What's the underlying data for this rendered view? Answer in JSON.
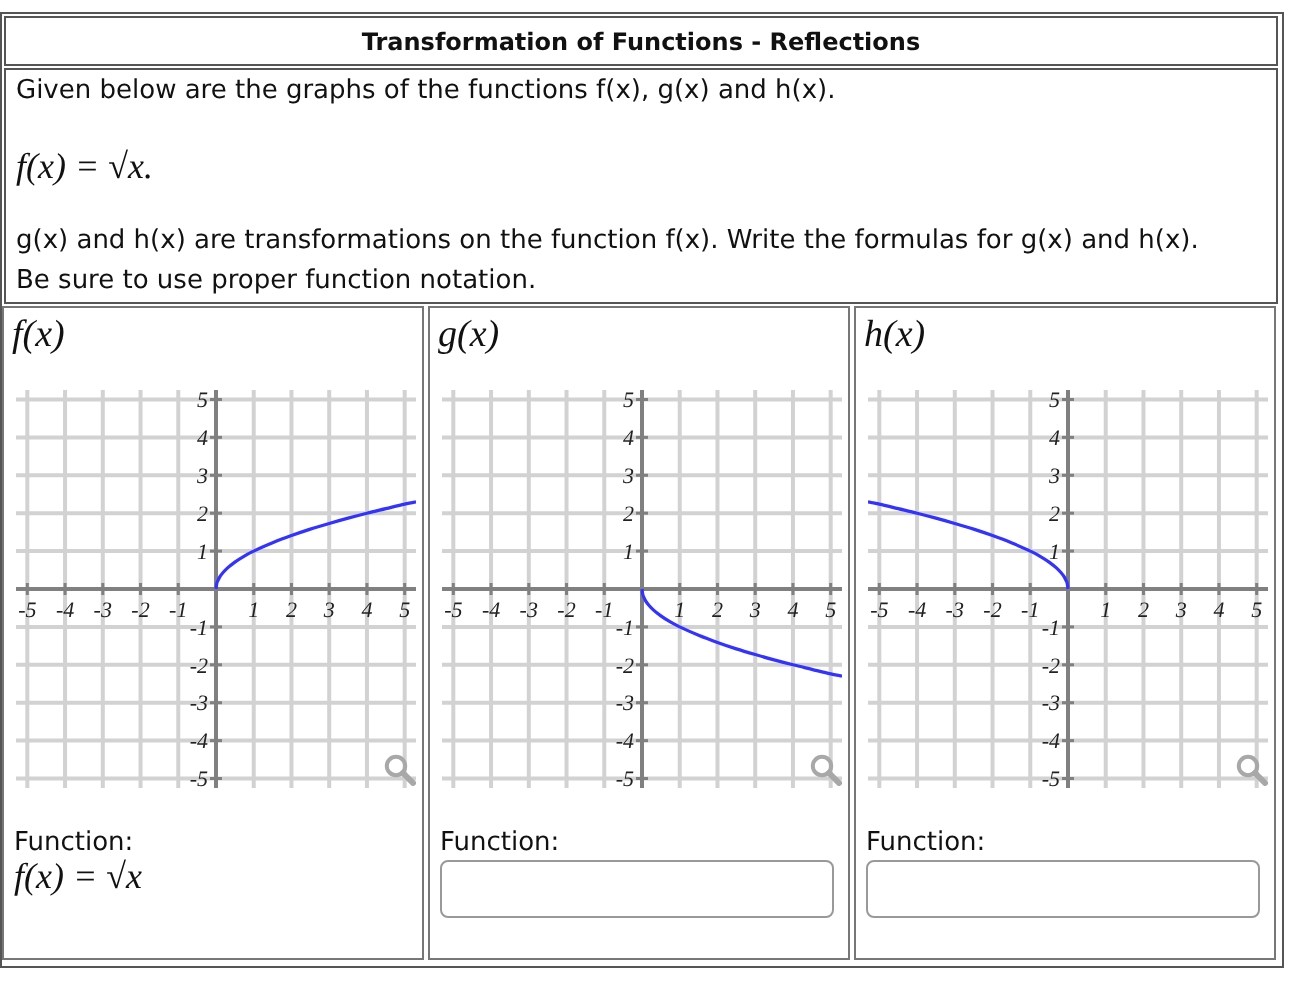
{
  "chart_data": [
    {
      "type": "other",
      "title": "Transformation of Functions - Reflections",
      "annotations": [
        "Given below are the graphs of the functions f(x), g(x) and h(x).",
        "f(x) = √x.",
        "g(x) and h(x) are transformations on the function f(x). Write the formulas for g(x) and h(x).",
        "Be sure to use proper function notation."
      ]
    },
    {
      "type": "line",
      "title": "f(x)",
      "x": [
        0,
        0.02,
        0.05,
        0.1,
        0.2,
        0.3,
        0.5,
        0.75,
        1,
        1.5,
        2,
        2.5,
        3,
        3.5,
        4,
        4.5,
        5,
        5.3
      ],
      "values": [
        0,
        0.14,
        0.22,
        0.32,
        0.45,
        0.55,
        0.71,
        0.87,
        1,
        1.22,
        1.41,
        1.58,
        1.73,
        1.87,
        2,
        2.12,
        2.24,
        2.3
      ],
      "color": "#3333ff",
      "xlim": [
        -5.3,
        5.3
      ],
      "ylim": [
        -5.25,
        5.25
      ],
      "xticks": [
        -5,
        -4,
        -3,
        -2,
        -1,
        1,
        2,
        3,
        4,
        5
      ],
      "yticks": [
        -5,
        -4,
        -3,
        -2,
        -1,
        1,
        2,
        3,
        4,
        5
      ],
      "grid": true,
      "annotations": [
        "Function:",
        "f(x) = √x"
      ]
    },
    {
      "type": "line",
      "title": "g(x)",
      "x": [
        0,
        0.02,
        0.05,
        0.1,
        0.2,
        0.3,
        0.5,
        0.75,
        1,
        1.5,
        2,
        2.5,
        3,
        3.5,
        4,
        4.5,
        5,
        5.3
      ],
      "values": [
        0,
        -0.14,
        -0.22,
        -0.32,
        -0.45,
        -0.55,
        -0.71,
        -0.87,
        -1,
        -1.22,
        -1.41,
        -1.58,
        -1.73,
        -1.87,
        -2,
        -2.12,
        -2.24,
        -2.3
      ],
      "color": "#3333ff",
      "xlim": [
        -5.3,
        5.3
      ],
      "ylim": [
        -5.25,
        5.25
      ],
      "xticks": [
        -5,
        -4,
        -3,
        -2,
        -1,
        1,
        2,
        3,
        4,
        5
      ],
      "yticks": [
        -5,
        -4,
        -3,
        -2,
        -1,
        1,
        2,
        3,
        4,
        5
      ],
      "grid": true,
      "annotations": [
        "Function:"
      ]
    },
    {
      "type": "line",
      "title": "h(x)",
      "x": [
        -5.3,
        -5,
        -4.5,
        -4,
        -3.5,
        -3,
        -2.5,
        -2,
        -1.5,
        -1,
        -0.75,
        -0.5,
        -0.3,
        -0.2,
        -0.1,
        -0.05,
        -0.02,
        0
      ],
      "values": [
        2.3,
        2.24,
        2.12,
        2,
        1.87,
        1.73,
        1.58,
        1.41,
        1.22,
        1,
        0.87,
        0.71,
        0.55,
        0.45,
        0.32,
        0.22,
        0.14,
        0
      ],
      "color": "#3333ff",
      "xlim": [
        -5.3,
        5.3
      ],
      "ylim": [
        -5.25,
        5.25
      ],
      "xticks": [
        -5,
        -4,
        -3,
        -2,
        -1,
        1,
        2,
        3,
        4,
        5
      ],
      "yticks": [
        -5,
        -4,
        -3,
        -2,
        -1,
        1,
        2,
        3,
        4,
        5
      ],
      "grid": true,
      "annotations": [
        "Function:"
      ]
    }
  ]
}
